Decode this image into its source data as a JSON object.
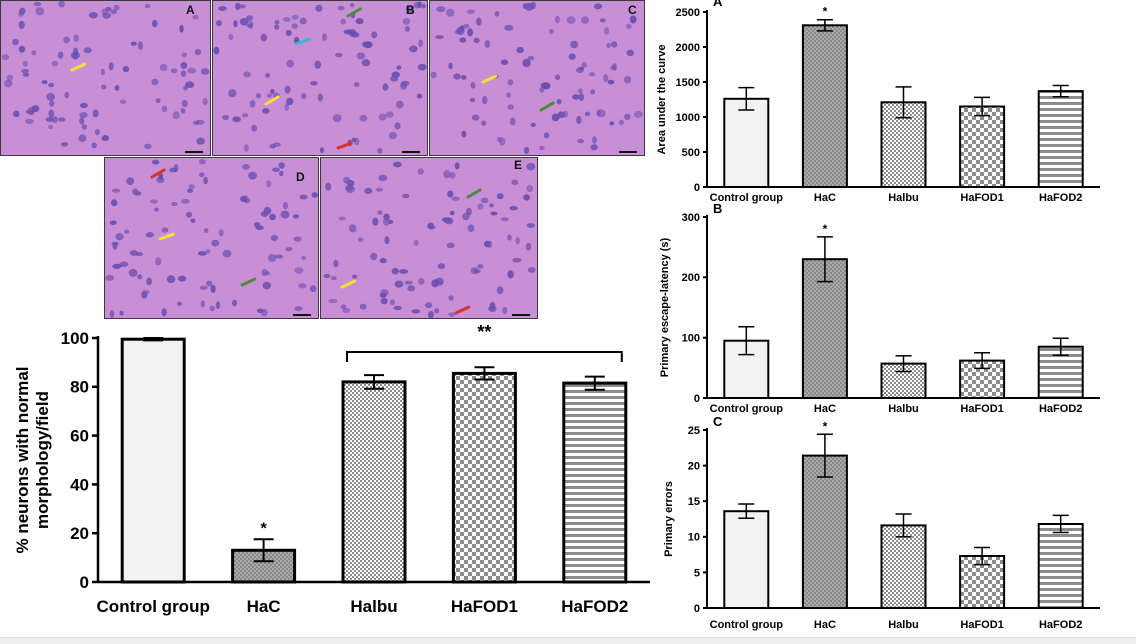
{
  "micrographs": {
    "panels": [
      {
        "label": "A",
        "arrows": [
          "yellow"
        ]
      },
      {
        "label": "B",
        "arrows": [
          "green",
          "cyan",
          "yellow",
          "red"
        ]
      },
      {
        "label": "C",
        "arrows": [
          "yellow",
          "green"
        ]
      },
      {
        "label": "D",
        "arrows": [
          "red",
          "yellow",
          "green"
        ]
      },
      {
        "label": "E",
        "arrows": [
          "green",
          "yellow",
          "red"
        ]
      }
    ],
    "arrow_colors": {
      "yellow": "#f2e033",
      "green": "#4e8a3a",
      "cyan": "#3fb6d8",
      "red": "#d8322a"
    },
    "tissue_color": "#c98fd6",
    "nucleus_color": "#6a4fb0"
  },
  "chart_data": [
    {
      "id": "neurons",
      "type": "bar",
      "categories": [
        "Control group",
        "HaC",
        "Halbu",
        "HaFOD1",
        "HaFOD2"
      ],
      "values": [
        99.5,
        13,
        82,
        85.5,
        81.5
      ],
      "errors": [
        0.5,
        4.5,
        2.8,
        2.5,
        2.7
      ],
      "patterns": [
        "plain",
        "dots",
        "check-small",
        "check-large",
        "hstripes"
      ],
      "ylabel": "% neurons with normal morphology/field",
      "ylim": [
        0,
        100
      ],
      "yticks": [
        "0",
        "20",
        "40",
        "60",
        "80",
        "100"
      ],
      "annotations": [
        {
          "category": "HaC",
          "text": "*"
        }
      ],
      "bracket": {
        "from": "Halbu",
        "to": "HaFOD2",
        "text": "**"
      }
    },
    {
      "id": "A",
      "panel_label": "A",
      "type": "bar",
      "categories": [
        "Control group",
        "HaC",
        "Halbu",
        "HaFOD1",
        "HaFOD2"
      ],
      "values": [
        1260,
        2310,
        1210,
        1150,
        1370
      ],
      "errors": [
        160,
        80,
        220,
        130,
        80
      ],
      "patterns": [
        "plain",
        "dots",
        "check-small",
        "check-large",
        "hstripes"
      ],
      "ylabel": "Area under the curve",
      "ylim": [
        0,
        2500
      ],
      "yticks": [
        "0",
        "500",
        "1000",
        "1500",
        "2000",
        "2500"
      ],
      "annotations": [
        {
          "category": "HaC",
          "text": "*"
        }
      ]
    },
    {
      "id": "B",
      "panel_label": "B",
      "type": "bar",
      "categories": [
        "Control group",
        "HaC",
        "Halbu",
        "HaFOD1",
        "HaFOD2"
      ],
      "values": [
        95,
        230,
        57,
        62,
        85
      ],
      "errors": [
        23,
        37,
        13,
        13,
        14
      ],
      "patterns": [
        "plain",
        "dots",
        "check-small",
        "check-large",
        "hstripes"
      ],
      "ylabel": "Primary escape-latency (s)",
      "ylim": [
        0,
        300
      ],
      "yticks": [
        "0",
        "100",
        "200",
        "300"
      ],
      "annotations": [
        {
          "category": "HaC",
          "text": "*"
        }
      ]
    },
    {
      "id": "C",
      "panel_label": "C",
      "type": "bar",
      "categories": [
        "Control group",
        "HaC",
        "Halbu",
        "HaFOD1",
        "HaFOD2"
      ],
      "values": [
        13.6,
        21.4,
        11.6,
        7.3,
        11.8
      ],
      "errors": [
        1.0,
        3.0,
        1.6,
        1.2,
        1.2
      ],
      "patterns": [
        "plain",
        "dots",
        "check-small",
        "check-large",
        "hstripes"
      ],
      "ylabel": "Primary errors",
      "ylim": [
        0,
        25
      ],
      "yticks": [
        "0",
        "5",
        "10",
        "15",
        "20",
        "25"
      ],
      "annotations": [
        {
          "category": "HaC",
          "text": "*"
        }
      ]
    }
  ]
}
